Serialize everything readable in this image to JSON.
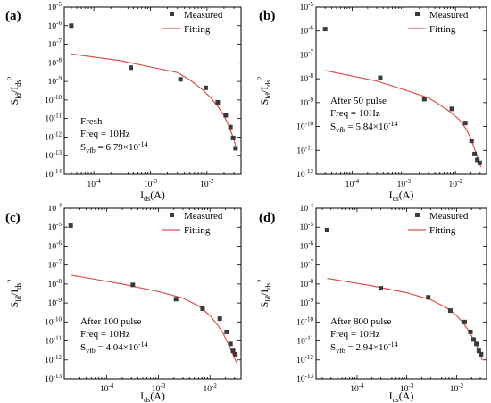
{
  "chart_data": [
    {
      "type": "scatter",
      "panel_label": "(a)",
      "xlabel_main": "I",
      "xlabel_sub": "ds",
      "xlabel_unit": "(A)",
      "ylabel": {
        "s": "S",
        "s_sub": "Id",
        "slash": "/I",
        "i_sub": "ds",
        "sup": "2"
      },
      "xscale": "log",
      "yscale": "log",
      "xlim": [
        3e-05,
        0.04
      ],
      "ylim": [
        1e-14,
        1e-05
      ],
      "xticks": [
        {
          "v": 0.0001,
          "base": "10",
          "exp": "-4"
        },
        {
          "v": 0.001,
          "base": "10",
          "exp": "-3"
        },
        {
          "v": 0.01,
          "base": "10",
          "exp": "-2"
        }
      ],
      "yticks": [
        {
          "v": 1e-05,
          "base": "10",
          "exp": "-5"
        },
        {
          "v": 1e-06,
          "base": "10",
          "exp": "-6"
        },
        {
          "v": 1e-07,
          "base": "10",
          "exp": "-7"
        },
        {
          "v": 1e-08,
          "base": "10",
          "exp": "-8"
        },
        {
          "v": 1e-09,
          "base": "10",
          "exp": "-9"
        },
        {
          "v": 1e-10,
          "base": "10",
          "exp": "-10"
        },
        {
          "v": 1e-11,
          "base": "10",
          "exp": "-11"
        },
        {
          "v": 1e-12,
          "base": "10",
          "exp": "-12"
        },
        {
          "v": 1e-13,
          "base": "10",
          "exp": "-13"
        },
        {
          "v": 1e-14,
          "base": "10",
          "exp": "-14"
        }
      ],
      "legend": {
        "position": "top-right",
        "measured": "Measured",
        "fitting": "Fitting"
      },
      "series": [
        {
          "name": "Measured",
          "style": "marker",
          "x": [
            4e-05,
            0.00045,
            0.0034,
            0.0095,
            0.0155,
            0.0215,
            0.026,
            0.029,
            0.032
          ],
          "y": [
            1e-06,
            5.5e-09,
            1.3e-09,
            4.5e-10,
            7.5e-11,
            1.5e-11,
            3.5e-12,
            9e-13,
            2.5e-13
          ]
        },
        {
          "name": "Fitting",
          "style": "line",
          "x": [
            4e-05,
            0.0003,
            0.001,
            0.003,
            0.005,
            0.008,
            0.012,
            0.016,
            0.02,
            0.024,
            0.028,
            0.032
          ],
          "y": [
            3e-08,
            1.3e-08,
            6e-09,
            3e-09,
            1.2e-09,
            4e-10,
            1.2e-10,
            4e-11,
            1.4e-11,
            4.5e-12,
            1.3e-12,
            3.5e-13
          ]
        }
      ],
      "annotation": {
        "line1": "Fresh",
        "line2": "Freq = 10Hz",
        "line3_pre": "S",
        "line3_sub": "vfb",
        "line3_post": " = 6.79×10",
        "line3_sup": "-14"
      }
    },
    {
      "type": "scatter",
      "panel_label": "(b)",
      "xlabel_main": "I",
      "xlabel_sub": "ds",
      "xlabel_unit": "(A)",
      "ylabel": {
        "s": "S",
        "s_sub": "Id",
        "slash": "/I",
        "i_sub": "ds",
        "sup": "2"
      },
      "xscale": "log",
      "yscale": "log",
      "xlim": [
        2e-05,
        0.04
      ],
      "ylim": [
        1e-12,
        1e-05
      ],
      "xticks": [
        {
          "v": 0.0001,
          "base": "10",
          "exp": "-4"
        },
        {
          "v": 0.001,
          "base": "10",
          "exp": "-3"
        },
        {
          "v": 0.01,
          "base": "10",
          "exp": "-2"
        }
      ],
      "yticks": [
        {
          "v": 1e-05,
          "base": "10",
          "exp": "-5"
        },
        {
          "v": 1e-06,
          "base": "10",
          "exp": "-6"
        },
        {
          "v": 1e-07,
          "base": "10",
          "exp": "-7"
        },
        {
          "v": 1e-08,
          "base": "10",
          "exp": "-8"
        },
        {
          "v": 1e-09,
          "base": "10",
          "exp": "-9"
        },
        {
          "v": 1e-10,
          "base": "10",
          "exp": "-10"
        },
        {
          "v": 1e-11,
          "base": "10",
          "exp": "-11"
        },
        {
          "v": 1e-12,
          "base": "10",
          "exp": "-12"
        }
      ],
      "legend": {
        "position": "top-right",
        "measured": "Measured",
        "fitting": "Fitting"
      },
      "series": [
        {
          "name": "Measured",
          "style": "marker",
          "x": [
            3e-05,
            0.00035,
            0.0025,
            0.0085,
            0.0155,
            0.0205,
            0.0235,
            0.0265,
            0.0295
          ],
          "y": [
            1.2e-06,
            1.1e-08,
            1.4e-09,
            5.5e-10,
            1.4e-10,
            2.5e-11,
            7e-12,
            4e-12,
            3e-12
          ]
        },
        {
          "name": "Fitting",
          "style": "line",
          "x": [
            3e-05,
            0.0003,
            0.001,
            0.003,
            0.005,
            0.008,
            0.012,
            0.016,
            0.02,
            0.024,
            0.028,
            0.031
          ],
          "y": [
            2.2e-08,
            8e-09,
            3.5e-09,
            1.6e-09,
            8e-10,
            4e-10,
            1.9e-10,
            8e-11,
            3e-11,
            1e-11,
            4e-12,
            2e-12
          ]
        }
      ],
      "annotation": {
        "line1": "After 50 pulse",
        "line2": "Freq = 10Hz",
        "line3_pre": "S",
        "line3_sub": "vfb",
        "line3_post": " = 5.84×10",
        "line3_sup": "-14"
      }
    },
    {
      "type": "scatter",
      "panel_label": "(c)",
      "xlabel_main": "I",
      "xlabel_sub": "ds",
      "xlabel_unit": "(A)",
      "ylabel": {
        "s": "S",
        "s_sub": "Id",
        "slash": "/I",
        "i_sub": "ds",
        "sup": "2"
      },
      "xscale": "log",
      "yscale": "log",
      "xlim": [
        1.5e-05,
        0.04
      ],
      "ylim": [
        1e-13,
        0.0001
      ],
      "xticks": [
        {
          "v": 0.0001,
          "base": "10",
          "exp": "-4"
        },
        {
          "v": 0.001,
          "base": "10",
          "exp": "-3"
        },
        {
          "v": 0.01,
          "base": "10",
          "exp": "-2"
        }
      ],
      "yticks": [
        {
          "v": 0.0001,
          "base": "10",
          "exp": "-4"
        },
        {
          "v": 1e-05,
          "base": "10",
          "exp": "-5"
        },
        {
          "v": 1e-06,
          "base": "10",
          "exp": "-6"
        },
        {
          "v": 1e-07,
          "base": "10",
          "exp": "-7"
        },
        {
          "v": 1e-08,
          "base": "10",
          "exp": "-8"
        },
        {
          "v": 1e-09,
          "base": "10",
          "exp": "-9"
        },
        {
          "v": 1e-10,
          "base": "10",
          "exp": "-10"
        },
        {
          "v": 1e-11,
          "base": "10",
          "exp": "-11"
        },
        {
          "v": 1e-12,
          "base": "10",
          "exp": "-12"
        },
        {
          "v": 1e-13,
          "base": "10",
          "exp": "-13"
        }
      ],
      "legend": {
        "position": "top-right",
        "measured": "Measured",
        "fitting": "Fitting"
      },
      "series": [
        {
          "name": "Measured",
          "style": "marker",
          "x": [
            2e-05,
            0.00032,
            0.0022,
            0.0072,
            0.0155,
            0.021,
            0.025,
            0.028,
            0.031
          ],
          "y": [
            1.2e-05,
            9e-09,
            1.6e-09,
            5e-10,
            1.5e-10,
            3e-11,
            7e-12,
            3e-12,
            2e-12
          ]
        },
        {
          "name": "Fitting",
          "style": "line",
          "x": [
            2e-05,
            0.0002,
            0.001,
            0.003,
            0.006,
            0.01,
            0.014,
            0.018,
            0.022,
            0.026,
            0.03,
            0.033
          ],
          "y": [
            3e-08,
            1e-08,
            4e-09,
            1.8e-09,
            7e-10,
            2.2e-10,
            7e-11,
            2.5e-11,
            8e-12,
            3e-12,
            1.2e-12,
            7e-13
          ]
        }
      ],
      "annotation": {
        "line1": "After 100 pulse",
        "line2": "Freq = 10Hz",
        "line3_pre": "S",
        "line3_sub": "vfb",
        "line3_post": " = 4.04×10",
        "line3_sup": "-14"
      }
    },
    {
      "type": "scatter",
      "panel_label": "(d)",
      "xlabel_main": "I",
      "xlabel_sub": "ds",
      "xlabel_unit": "(A)",
      "ylabel": {
        "s": "S",
        "s_sub": "Id",
        "slash": "/I",
        "i_sub": "ds",
        "sup": "2"
      },
      "xscale": "log",
      "yscale": "log",
      "xlim": [
        1.5e-05,
        0.04
      ],
      "ylim": [
        1e-13,
        0.0001
      ],
      "xticks": [
        {
          "v": 0.0001,
          "base": "10",
          "exp": "-4"
        },
        {
          "v": 0.001,
          "base": "10",
          "exp": "-3"
        },
        {
          "v": 0.01,
          "base": "10",
          "exp": "-2"
        }
      ],
      "yticks": [
        {
          "v": 0.0001,
          "base": "10",
          "exp": "-4"
        },
        {
          "v": 1e-05,
          "base": "10",
          "exp": "-5"
        },
        {
          "v": 1e-06,
          "base": "10",
          "exp": "-6"
        },
        {
          "v": 1e-07,
          "base": "10",
          "exp": "-7"
        },
        {
          "v": 1e-08,
          "base": "10",
          "exp": "-8"
        },
        {
          "v": 1e-09,
          "base": "10",
          "exp": "-9"
        },
        {
          "v": 1e-10,
          "base": "10",
          "exp": "-10"
        },
        {
          "v": 1e-11,
          "base": "10",
          "exp": "-11"
        },
        {
          "v": 1e-12,
          "base": "10",
          "exp": "-12"
        },
        {
          "v": 1e-13,
          "base": "10",
          "exp": "-13"
        }
      ],
      "legend": {
        "position": "top-right",
        "measured": "Measured",
        "fitting": "Fitting"
      },
      "series": [
        {
          "name": "Measured",
          "style": "marker",
          "x": [
            2.5e-05,
            0.0003,
            0.0027,
            0.0075,
            0.0145,
            0.019,
            0.022,
            0.025,
            0.028,
            0.031
          ],
          "y": [
            7e-06,
            6e-09,
            2e-09,
            4e-10,
            1e-10,
            3e-11,
            1.2e-11,
            7e-12,
            3e-12,
            2e-12
          ]
        },
        {
          "name": "Fitting",
          "style": "line",
          "x": [
            2.5e-05,
            0.0002,
            0.001,
            0.003,
            0.006,
            0.01,
            0.014,
            0.018,
            0.022,
            0.026,
            0.03,
            0.033
          ],
          "y": [
            2e-08,
            8e-09,
            3.5e-09,
            1.5e-09,
            6e-10,
            2.2e-10,
            8e-11,
            3e-11,
            1.2e-11,
            4.5e-12,
            1.8e-12,
            1e-12
          ]
        }
      ],
      "annotation": {
        "line1": "After 800 pulse",
        "line2": "Freq = 10Hz",
        "line3_pre": "S",
        "line3_sub": "vfb",
        "line3_post": " = 2.94×10",
        "line3_sup": "-14"
      }
    }
  ],
  "colors": {
    "marker": "#3a3a3a",
    "fit": "#d9534f",
    "axis": "#000000"
  }
}
